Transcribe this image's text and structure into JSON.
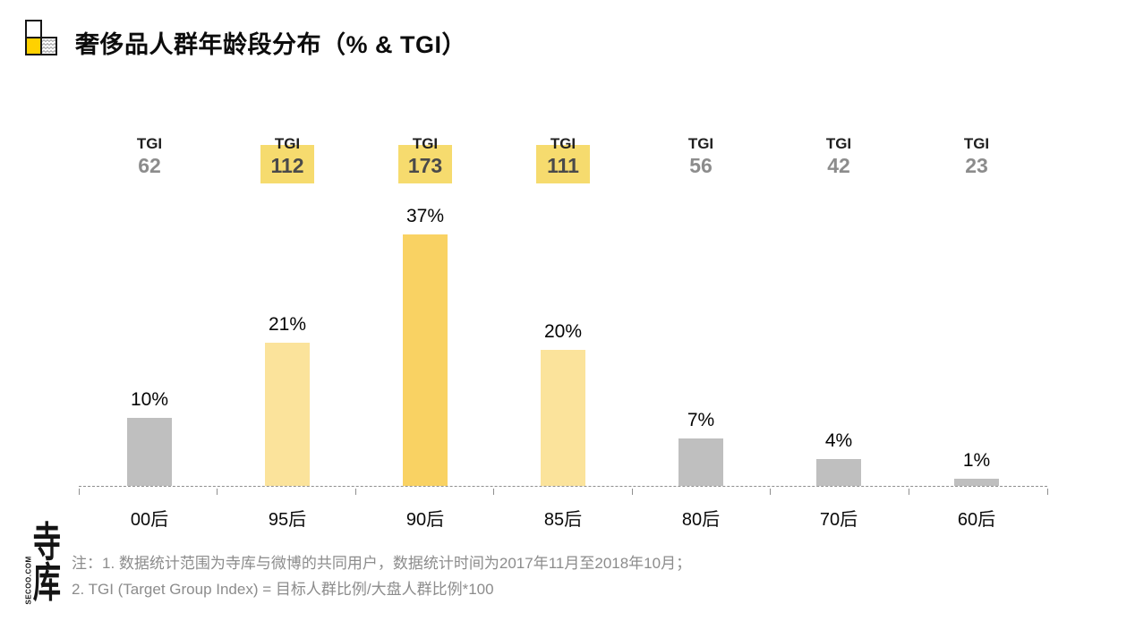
{
  "header": {
    "title": "奢侈品人群年龄段分布（% & TGI）"
  },
  "chart_data": {
    "type": "bar",
    "title": "奢侈品人群年龄段分布（% & TGI）",
    "categories": [
      "00后",
      "95后",
      "90后",
      "85后",
      "80后",
      "70后",
      "60后"
    ],
    "series": [
      {
        "name": "%",
        "values": [
          10,
          21,
          37,
          20,
          7,
          4,
          1
        ]
      },
      {
        "name": "TGI",
        "values": [
          62,
          112,
          173,
          111,
          56,
          42,
          23
        ]
      }
    ],
    "value_labels": [
      "10%",
      "21%",
      "37%",
      "20%",
      "7%",
      "4%",
      "1%"
    ],
    "tgi_row_label": "TGI",
    "tgi_highlighted": [
      false,
      true,
      true,
      true,
      false,
      false,
      false
    ],
    "bar_emphasis": [
      "gray",
      "light",
      "strong",
      "light",
      "gray",
      "gray",
      "gray"
    ],
    "ylim": [
      0,
      40
    ],
    "grid": false,
    "legend": "none",
    "axis_style": "dashed gray baseline with short category-boundary ticks, no y-axis"
  },
  "colors": {
    "bar_gray": "#BFBFBF",
    "bar_yellow_light": "#FBE39B",
    "bar_yellow_strong": "#F9D263",
    "tgi_highlight": "#F6DB6E",
    "tgi_value_muted": "#8C8C8C",
    "tgi_value_emphasis": "#4A4A4A",
    "tgi_label_color": "#1F1F1F",
    "icon_yellow": "#FFD100",
    "axis_gray": "#8F8F8F"
  },
  "notes": {
    "line1": "注：1. 数据统计范围为寺库与微博的共同用户，数据统计时间为2017年11月至2018年10月；",
    "line2": "2. TGI (Target Group Index) = 目标人群比例/大盘人群比例*100"
  },
  "logo": {
    "char1": "寺",
    "char2": "库",
    "subtext": "SECOO.COM"
  }
}
